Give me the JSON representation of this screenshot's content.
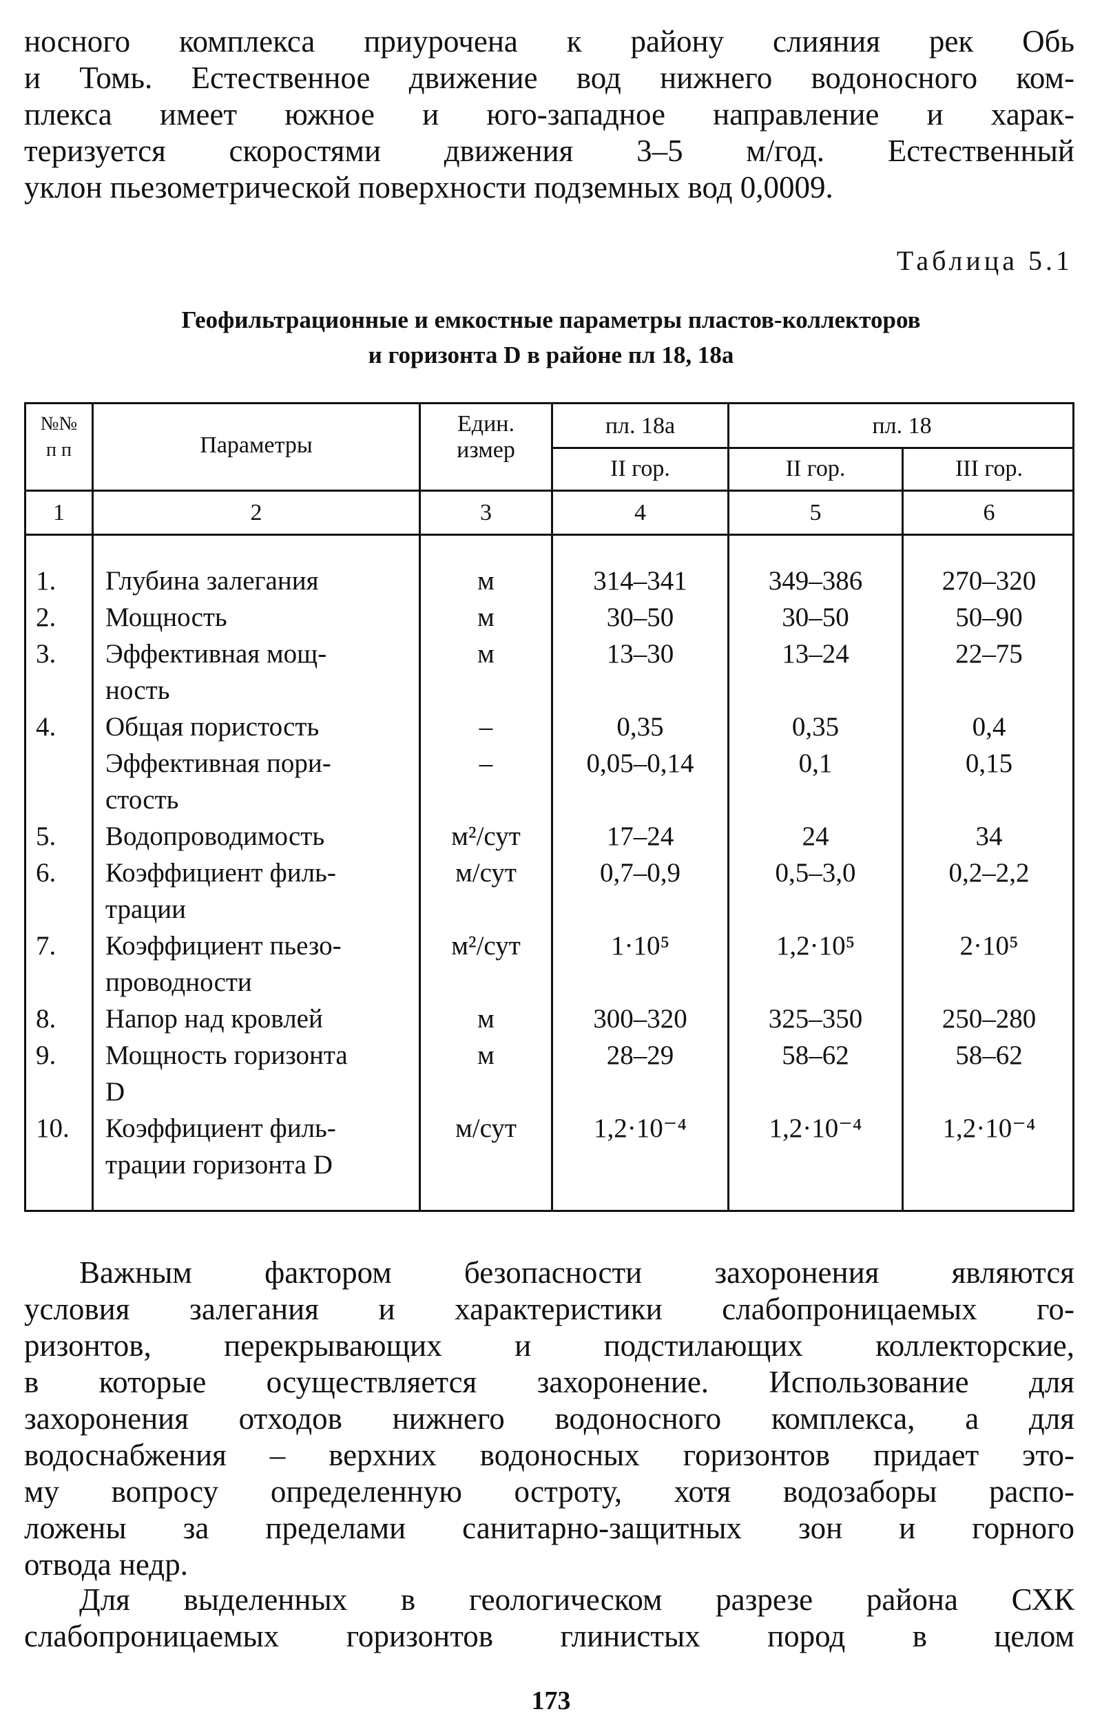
{
  "top_paragraph": [
    "носного комплекса приурочена к району слияния рек Обь",
    "и Томь. Естественное движение вод нижнего водоносного ком-",
    "плекса имеет южное и юго-западное направление и харак-",
    "теризуется скоростями движения 3–5 м/год. Естественный",
    "уклон пьезометрической поверхности подземных вод 0,0009."
  ],
  "table_caption": "Таблица 5.1",
  "table_title": [
    "Геофильтрационные и емкостные параметры пластов-коллекторов",
    "и горизонта D в районе пл 18, 18а"
  ],
  "table": {
    "headers": {
      "num": [
        "№№",
        "п п"
      ],
      "param": "Параметры",
      "unit": [
        "Един.",
        "измер"
      ],
      "group1": "пл. 18а",
      "group2": "пл. 18",
      "sub": [
        "II гор.",
        "II гор.",
        "III гор."
      ]
    },
    "column_numbers": [
      "1",
      "2",
      "3",
      "4",
      "5",
      "6"
    ],
    "rows": [
      {
        "num": "1.",
        "param": [
          "Глубина залегания"
        ],
        "unit": "м",
        "values": [
          "314–341",
          "349–386",
          "270–320"
        ]
      },
      {
        "num": "2.",
        "param": [
          "Мощность"
        ],
        "unit": "м",
        "values": [
          "30–50",
          "30–50",
          "50–90"
        ]
      },
      {
        "num": "3.",
        "param": [
          "Эффективная мощ-",
          "ность"
        ],
        "unit": "м",
        "values": [
          "13–30",
          "13–24",
          "22–75"
        ]
      },
      {
        "num": "4.",
        "param": [
          "Общая пористость"
        ],
        "unit": "–",
        "values": [
          "0,35",
          "0,35",
          "0,4"
        ]
      },
      {
        "num": "",
        "param": [
          "Эффективная пори-",
          "стость"
        ],
        "unit": "–",
        "values": [
          "0,05–0,14",
          "0,1",
          "0,15"
        ]
      },
      {
        "num": "5.",
        "param": [
          "Водопроводимость"
        ],
        "unit": "м²/сут",
        "values": [
          "17–24",
          "24",
          "34"
        ]
      },
      {
        "num": "6.",
        "param": [
          "Коэффициент филь-",
          "трации"
        ],
        "unit": "м/сут",
        "values": [
          "0,7–0,9",
          "0,5–3,0",
          "0,2–2,2"
        ]
      },
      {
        "num": "7.",
        "param": [
          "Коэффициент пьезо-",
          "проводности"
        ],
        "unit": "м²/сут",
        "values": [
          "1·10⁵",
          "1,2·10⁵",
          "2·10⁵"
        ]
      },
      {
        "num": "8.",
        "param": [
          "Напор над кровлей"
        ],
        "unit": "м",
        "values": [
          "300–320",
          "325–350",
          "250–280"
        ]
      },
      {
        "num": "9.",
        "param": [
          "Мощность горизонта",
          "D"
        ],
        "unit": "м",
        "values": [
          "28–29",
          "58–62",
          "58–62"
        ]
      },
      {
        "num": "10.",
        "param": [
          "Коэффициент филь-",
          "трации горизонта D"
        ],
        "unit": "м/сут",
        "values": [
          "1,2·10⁻⁴",
          "1,2·10⁻⁴",
          "1,2·10⁻⁴"
        ]
      }
    ]
  },
  "bottom_paragraph_1": [
    "Важным фактором безопасности захоронения являются",
    "условия залегания и характеристики слабопроницаемых го-",
    "ризонтов, перекрывающих и подстилающих коллекторские,",
    "в которые осуществляется захоронение. Использование для",
    "захоронения отходов нижнего водоносного комплекса, а для",
    "водоснабжения – верхних водоносных горизонтов придает это-",
    "му вопросу определенную остроту, хотя водозаборы распо-",
    "ложены за пределами санитарно-защитных зон и горного",
    "отвода недр."
  ],
  "bottom_paragraph_2": [
    "Для выделенных в геологическом разрезе района СХК",
    "слабопроницаемых горизонтов глинистых пород в целом"
  ],
  "page_number": "173"
}
